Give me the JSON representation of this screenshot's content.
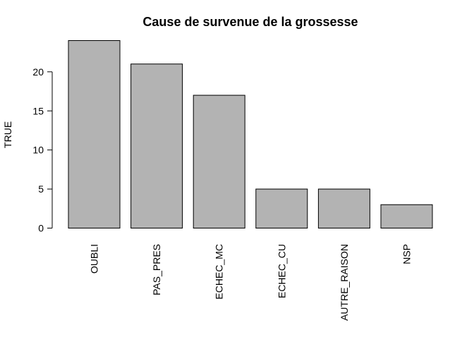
{
  "chart_data": {
    "type": "bar",
    "title": "Cause de survenue de la grossesse",
    "xlabel": "",
    "ylabel": "TRUE",
    "categories": [
      "OUBLI",
      "PAS_PRES",
      "ECHEC_MC",
      "ECHEC_CU",
      "AUTRE_RAISON",
      "NSP"
    ],
    "values": [
      24,
      21,
      17,
      5,
      5,
      3
    ],
    "ylim": [
      0,
      24
    ],
    "yticks": [
      0,
      5,
      10,
      15,
      20
    ],
    "grid": false,
    "legend": "none",
    "bar_fill": "#b3b3b3",
    "bar_stroke": "#000000"
  }
}
